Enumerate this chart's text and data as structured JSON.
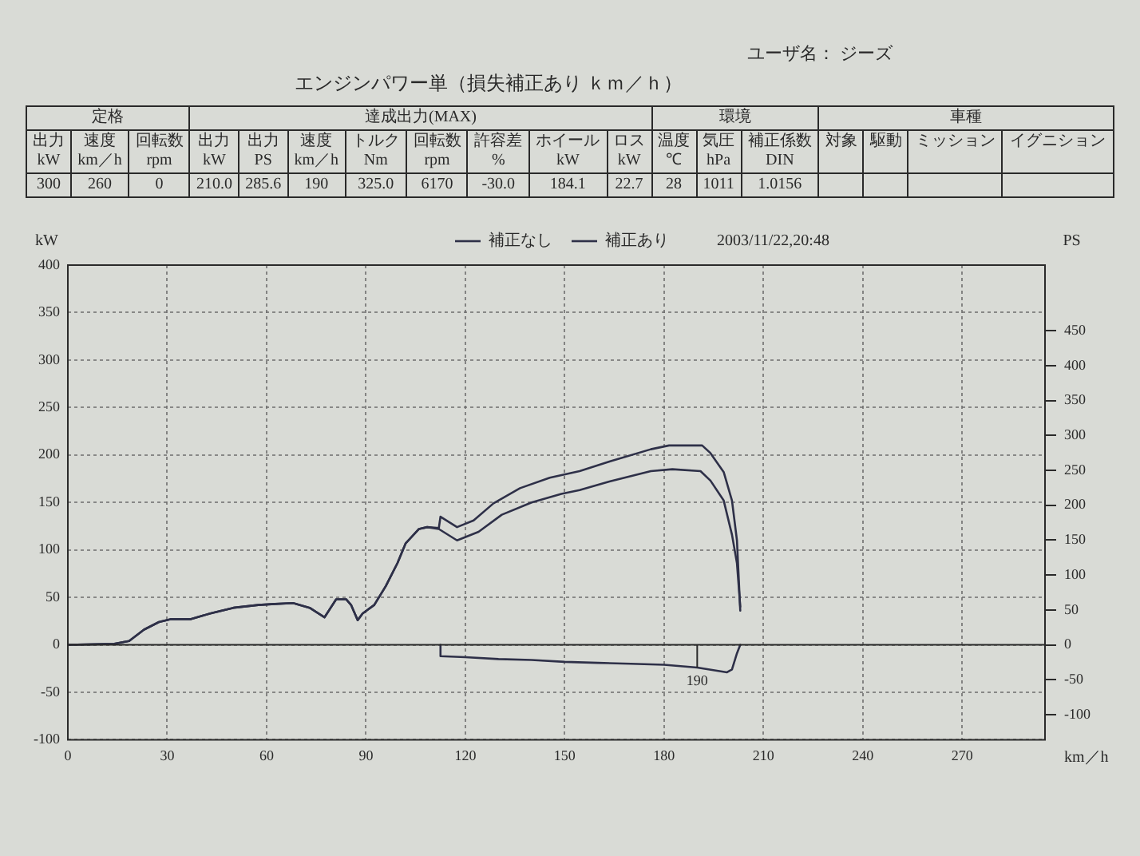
{
  "chart_data": [
    {
      "type": "other",
      "title": "エンジンパワー単（損失補正あり ｋｍ／ｈ）",
      "annotations": [
        "ユーザ名： ジーズ",
        "定格",
        "達成出力(MAX)",
        "環境",
        "車種",
        "出力\nkW",
        "速度\nkm／h",
        "回転数\nrpm",
        "出力\nkW",
        "出力\nPS",
        "速度\nkm／h",
        "トルク\nNm",
        "回転数\nrpm",
        "許容差\n%",
        "ホイール\nkW",
        "ロス\nkW",
        "温度\n℃",
        "気圧\nhPa",
        "補正係数\nDIN",
        "対象",
        "駆動",
        "ミッション",
        "イグニション",
        "300",
        "260",
        "0",
        "210.0",
        "285.6",
        "190",
        "325.0",
        "6170",
        "-30.0",
        "184.1",
        "22.7",
        "28",
        "1011",
        "1.0156"
      ]
    },
    {
      "type": "line",
      "xlabel": "km／h",
      "ylabel": "kW",
      "y2label": "PS",
      "xlim": [
        0,
        295
      ],
      "xticks": [
        0,
        30,
        60,
        90,
        120,
        150,
        180,
        210,
        240,
        270
      ],
      "ylim": [
        -100,
        400
      ],
      "yticks": [
        -100,
        -50,
        0,
        50,
        100,
        150,
        200,
        250,
        300,
        350,
        400
      ],
      "y2lim": [
        -136,
        544
      ],
      "y2ticks": [
        -100,
        -50,
        0,
        50,
        100,
        150,
        200,
        250,
        300,
        350,
        400,
        450
      ],
      "grid": true,
      "legend": "top",
      "line_style": "solid",
      "ref_lines": [
        {
          "axis": "y",
          "value": 0
        }
      ],
      "annotations": [
        "2003/11/22,20:48",
        {
          "text": "190",
          "x": 190,
          "y": -24
        }
      ],
      "series": [
        {
          "name": "補正なし",
          "color": "#2e3048",
          "x": [
            0,
            14,
            18.5,
            23,
            27.5,
            31,
            37,
            43,
            50,
            57.5,
            62.5,
            68,
            73,
            77.5,
            81,
            84,
            85.5,
            87.5,
            89,
            92.5,
            96,
            99.5,
            102,
            106,
            108.5,
            112,
            117.5,
            124,
            131,
            140,
            149,
            154.5,
            163.5,
            176,
            182.5,
            191,
            194,
            198,
            200.5,
            202,
            203
          ],
          "values": [
            0,
            1,
            4,
            16,
            24,
            27,
            27,
            33,
            39,
            42,
            43,
            44,
            39,
            29,
            48,
            48,
            42,
            26,
            33,
            42,
            62,
            86,
            107,
            122,
            124,
            122,
            110,
            119,
            137,
            150,
            159,
            163,
            172,
            183,
            185,
            183,
            173,
            152,
            116,
            86,
            40
          ]
        },
        {
          "name": "補正あり",
          "color": "#2e3048",
          "x": [
            0,
            14,
            18.5,
            23,
            27.5,
            31,
            37,
            43,
            50,
            57.5,
            62.5,
            68,
            73,
            77.5,
            81,
            84,
            85.5,
            87.5,
            89,
            92.5,
            96,
            99.5,
            102,
            106,
            108.5,
            112,
            112.5,
            117.5,
            122.5,
            128.5,
            136.5,
            145.5,
            154.5,
            163.5,
            176,
            181.5,
            191.5,
            194,
            198,
            200.5,
            202,
            203
          ],
          "values": [
            0,
            1,
            4,
            16,
            24,
            27,
            27,
            33,
            39,
            42,
            43,
            44,
            39,
            29,
            48,
            48,
            42,
            26,
            33,
            42,
            62,
            86,
            107,
            122,
            124,
            123,
            135,
            124,
            131,
            149,
            165,
            176,
            183,
            193,
            206,
            210,
            210,
            202,
            182,
            152,
            110,
            36
          ]
        },
        {
          "color": "#2e3048",
          "x": [
            112.5,
            112.5,
            120,
            130,
            140,
            150,
            160,
            170,
            180,
            190,
            199,
            200.5,
            202,
            203
          ],
          "values": [
            0,
            -12,
            -13,
            -15,
            -16,
            -18,
            -19,
            -20,
            -21,
            -24,
            -29,
            -26,
            -9,
            0
          ]
        }
      ]
    }
  ]
}
